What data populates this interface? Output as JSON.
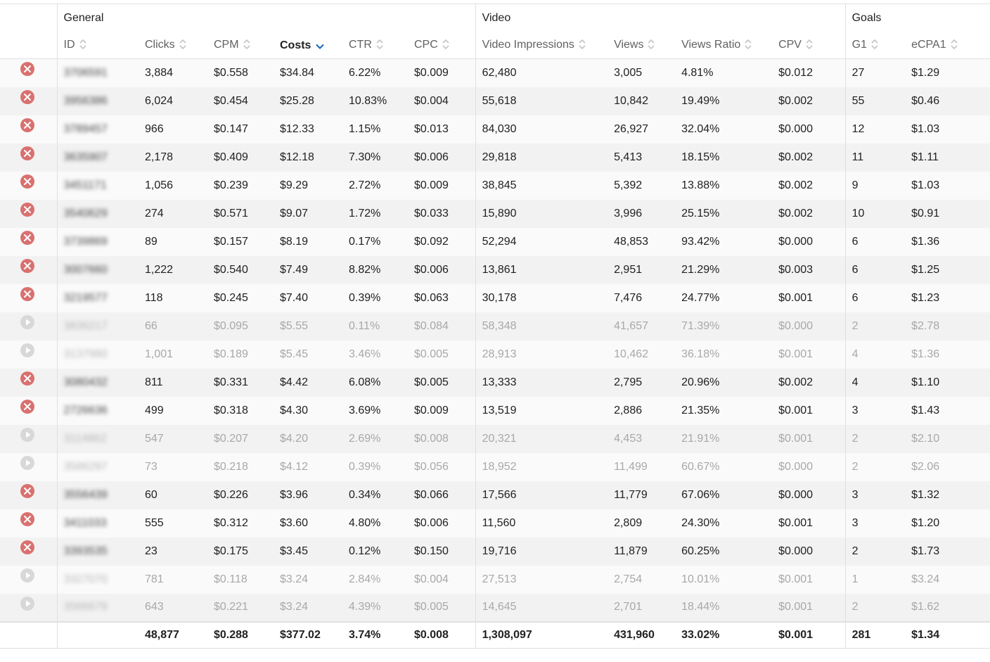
{
  "groups": {
    "general": "General",
    "video": "Video",
    "goals": "Goals"
  },
  "columns": {
    "id": "ID",
    "clicks": "Clicks",
    "cpm": "CPM",
    "costs": "Costs",
    "ctr": "CTR",
    "cpc": "CPC",
    "video_impressions": "Video Impressions",
    "views": "Views",
    "views_ratio": "Views Ratio",
    "cpv": "CPV",
    "g1": "G1",
    "ecpa1": "eCPA1"
  },
  "sorted_column": "costs",
  "colors": {
    "stop_icon": "#d9716f",
    "play_icon": "#d8d8d8",
    "sort_arrow": "#1565c0"
  },
  "rows": [
    {
      "status": "active",
      "id": "3706591",
      "clicks": "3,884",
      "cpm": "$0.558",
      "costs": "$34.84",
      "ctr": "6.22%",
      "cpc": "$0.009",
      "vi": "62,480",
      "views": "3,005",
      "vr": "4.81%",
      "cpv": "$0.012",
      "g1": "27",
      "ecpa": "$1.29"
    },
    {
      "status": "active",
      "id": "3956386",
      "clicks": "6,024",
      "cpm": "$0.454",
      "costs": "$25.28",
      "ctr": "10.83%",
      "cpc": "$0.004",
      "vi": "55,618",
      "views": "10,842",
      "vr": "19.49%",
      "cpv": "$0.002",
      "g1": "55",
      "ecpa": "$0.46"
    },
    {
      "status": "active",
      "id": "3789457",
      "clicks": "966",
      "cpm": "$0.147",
      "costs": "$12.33",
      "ctr": "1.15%",
      "cpc": "$0.013",
      "vi": "84,030",
      "views": "26,927",
      "vr": "32.04%",
      "cpv": "$0.000",
      "g1": "12",
      "ecpa": "$1.03"
    },
    {
      "status": "active",
      "id": "3635907",
      "clicks": "2,178",
      "cpm": "$0.409",
      "costs": "$12.18",
      "ctr": "7.30%",
      "cpc": "$0.006",
      "vi": "29,818",
      "views": "5,413",
      "vr": "18.15%",
      "cpv": "$0.002",
      "g1": "11",
      "ecpa": "$1.11"
    },
    {
      "status": "active",
      "id": "3451171",
      "clicks": "1,056",
      "cpm": "$0.239",
      "costs": "$9.29",
      "ctr": "2.72%",
      "cpc": "$0.009",
      "vi": "38,845",
      "views": "5,392",
      "vr": "13.88%",
      "cpv": "$0.002",
      "g1": "9",
      "ecpa": "$1.03"
    },
    {
      "status": "active",
      "id": "3540629",
      "clicks": "274",
      "cpm": "$0.571",
      "costs": "$9.07",
      "ctr": "1.72%",
      "cpc": "$0.033",
      "vi": "15,890",
      "views": "3,996",
      "vr": "25.15%",
      "cpv": "$0.002",
      "g1": "10",
      "ecpa": "$0.91"
    },
    {
      "status": "active",
      "id": "3739869",
      "clicks": "89",
      "cpm": "$0.157",
      "costs": "$8.19",
      "ctr": "0.17%",
      "cpc": "$0.092",
      "vi": "52,294",
      "views": "48,853",
      "vr": "93.42%",
      "cpv": "$0.000",
      "g1": "6",
      "ecpa": "$1.36"
    },
    {
      "status": "active",
      "id": "3007660",
      "clicks": "1,222",
      "cpm": "$0.540",
      "costs": "$7.49",
      "ctr": "8.82%",
      "cpc": "$0.006",
      "vi": "13,861",
      "views": "2,951",
      "vr": "21.29%",
      "cpv": "$0.003",
      "g1": "6",
      "ecpa": "$1.25"
    },
    {
      "status": "active",
      "id": "3219577",
      "clicks": "118",
      "cpm": "$0.245",
      "costs": "$7.40",
      "ctr": "0.39%",
      "cpc": "$0.063",
      "vi": "30,178",
      "views": "7,476",
      "vr": "24.77%",
      "cpv": "$0.001",
      "g1": "6",
      "ecpa": "$1.23"
    },
    {
      "status": "inactive",
      "id": "3836217",
      "clicks": "66",
      "cpm": "$0.095",
      "costs": "$5.55",
      "ctr": "0.11%",
      "cpc": "$0.084",
      "vi": "58,348",
      "views": "41,657",
      "vr": "71.39%",
      "cpv": "$0.000",
      "g1": "2",
      "ecpa": "$2.78"
    },
    {
      "status": "inactive",
      "id": "3137980",
      "clicks": "1,001",
      "cpm": "$0.189",
      "costs": "$5.45",
      "ctr": "3.46%",
      "cpc": "$0.005",
      "vi": "28,913",
      "views": "10,462",
      "vr": "36.18%",
      "cpv": "$0.001",
      "g1": "4",
      "ecpa": "$1.36"
    },
    {
      "status": "active",
      "id": "3080432",
      "clicks": "811",
      "cpm": "$0.331",
      "costs": "$4.42",
      "ctr": "6.08%",
      "cpc": "$0.005",
      "vi": "13,333",
      "views": "2,795",
      "vr": "20.96%",
      "cpv": "$0.002",
      "g1": "4",
      "ecpa": "$1.10"
    },
    {
      "status": "active",
      "id": "2726636",
      "clicks": "499",
      "cpm": "$0.318",
      "costs": "$4.30",
      "ctr": "3.69%",
      "cpc": "$0.009",
      "vi": "13,519",
      "views": "2,886",
      "vr": "21.35%",
      "cpv": "$0.001",
      "g1": "3",
      "ecpa": "$1.43"
    },
    {
      "status": "inactive",
      "id": "3114862",
      "clicks": "547",
      "cpm": "$0.207",
      "costs": "$4.20",
      "ctr": "2.69%",
      "cpc": "$0.008",
      "vi": "20,321",
      "views": "4,453",
      "vr": "21.91%",
      "cpv": "$0.001",
      "g1": "2",
      "ecpa": "$2.10"
    },
    {
      "status": "inactive",
      "id": "3586297",
      "clicks": "73",
      "cpm": "$0.218",
      "costs": "$4.12",
      "ctr": "0.39%",
      "cpc": "$0.056",
      "vi": "18,952",
      "views": "11,499",
      "vr": "60.67%",
      "cpv": "$0.000",
      "g1": "2",
      "ecpa": "$2.06"
    },
    {
      "status": "active",
      "id": "3556439",
      "clicks": "60",
      "cpm": "$0.226",
      "costs": "$3.96",
      "ctr": "0.34%",
      "cpc": "$0.066",
      "vi": "17,566",
      "views": "11,779",
      "vr": "67.06%",
      "cpv": "$0.000",
      "g1": "3",
      "ecpa": "$1.32"
    },
    {
      "status": "active",
      "id": "3411033",
      "clicks": "555",
      "cpm": "$0.312",
      "costs": "$3.60",
      "ctr": "4.80%",
      "cpc": "$0.006",
      "vi": "11,560",
      "views": "2,809",
      "vr": "24.30%",
      "cpv": "$0.001",
      "g1": "3",
      "ecpa": "$1.20"
    },
    {
      "status": "active",
      "id": "3393535",
      "clicks": "23",
      "cpm": "$0.175",
      "costs": "$3.45",
      "ctr": "0.12%",
      "cpc": "$0.150",
      "vi": "19,716",
      "views": "11,879",
      "vr": "60.25%",
      "cpv": "$0.000",
      "g1": "2",
      "ecpa": "$1.73"
    },
    {
      "status": "inactive",
      "id": "3327070",
      "clicks": "781",
      "cpm": "$0.118",
      "costs": "$3.24",
      "ctr": "2.84%",
      "cpc": "$0.004",
      "vi": "27,513",
      "views": "2,754",
      "vr": "10.01%",
      "cpv": "$0.001",
      "g1": "1",
      "ecpa": "$3.24"
    },
    {
      "status": "inactive",
      "id": "3566679",
      "clicks": "643",
      "cpm": "$0.221",
      "costs": "$3.24",
      "ctr": "4.39%",
      "cpc": "$0.005",
      "vi": "14,645",
      "views": "2,701",
      "vr": "18.44%",
      "cpv": "$0.001",
      "g1": "2",
      "ecpa": "$1.62"
    }
  ],
  "totals": {
    "clicks": "48,877",
    "cpm": "$0.288",
    "costs": "$377.02",
    "ctr": "3.74%",
    "cpc": "$0.008",
    "vi": "1,308,097",
    "views": "431,960",
    "vr": "33.02%",
    "cpv": "$0.001",
    "g1": "281",
    "ecpa": "$1.34"
  }
}
